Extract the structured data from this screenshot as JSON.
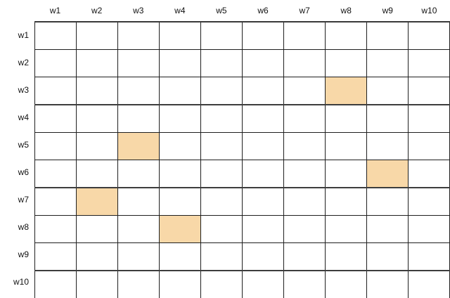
{
  "grid": {
    "col_labels": [
      "w1",
      "w2",
      "w3",
      "w4",
      "w5",
      "w6",
      "w7",
      "w8",
      "w9",
      "w10"
    ],
    "row_labels": [
      "w1",
      "w2",
      "w3",
      "w4",
      "w5",
      "w6",
      "w7",
      "w8",
      "w9",
      "w10"
    ],
    "highlighted_cells": [
      {
        "row": "w3",
        "col": "w8"
      },
      {
        "row": "w5",
        "col": "w3"
      },
      {
        "row": "w6",
        "col": "w9"
      },
      {
        "row": "w7",
        "col": "w2"
      },
      {
        "row": "w8",
        "col": "w4"
      }
    ],
    "thick_boundary_after_rows": [
      "w3",
      "w6",
      "w9"
    ],
    "colors": {
      "highlight": "#f8d8a8",
      "grid_line": "#1f1f1f",
      "thick_line": "#3d3d3d",
      "label_text": "#111111",
      "background": "#ffffff"
    }
  },
  "chart_data": {
    "type": "heatmap",
    "title": "",
    "x_categories": [
      "w1",
      "w2",
      "w3",
      "w4",
      "w5",
      "w6",
      "w7",
      "w8",
      "w9",
      "w10"
    ],
    "y_categories": [
      "w1",
      "w2",
      "w3",
      "w4",
      "w5",
      "w6",
      "w7",
      "w8",
      "w9",
      "w10"
    ],
    "matrix": [
      [
        0,
        0,
        0,
        0,
        0,
        0,
        0,
        0,
        0,
        0
      ],
      [
        0,
        0,
        0,
        0,
        0,
        0,
        0,
        0,
        0,
        0
      ],
      [
        0,
        0,
        0,
        0,
        0,
        0,
        0,
        1,
        0,
        0
      ],
      [
        0,
        0,
        0,
        0,
        0,
        0,
        0,
        0,
        0,
        0
      ],
      [
        0,
        0,
        1,
        0,
        0,
        0,
        0,
        0,
        0,
        0
      ],
      [
        0,
        0,
        0,
        0,
        0,
        0,
        0,
        0,
        1,
        0
      ],
      [
        0,
        1,
        0,
        0,
        0,
        0,
        0,
        0,
        0,
        0
      ],
      [
        0,
        0,
        0,
        1,
        0,
        0,
        0,
        0,
        0,
        0
      ],
      [
        0,
        0,
        0,
        0,
        0,
        0,
        0,
        0,
        0,
        0
      ],
      [
        0,
        0,
        0,
        0,
        0,
        0,
        0,
        0,
        0,
        0
      ]
    ],
    "highlighted_points": [
      {
        "y": "w3",
        "x": "w8",
        "value": 1
      },
      {
        "y": "w5",
        "x": "w3",
        "value": 1
      },
      {
        "y": "w6",
        "x": "w9",
        "value": 1
      },
      {
        "y": "w7",
        "x": "w2",
        "value": 1
      },
      {
        "y": "w8",
        "x": "w4",
        "value": 1
      }
    ],
    "highlight_color": "#f8d8a8",
    "grid": true,
    "legend": false
  }
}
